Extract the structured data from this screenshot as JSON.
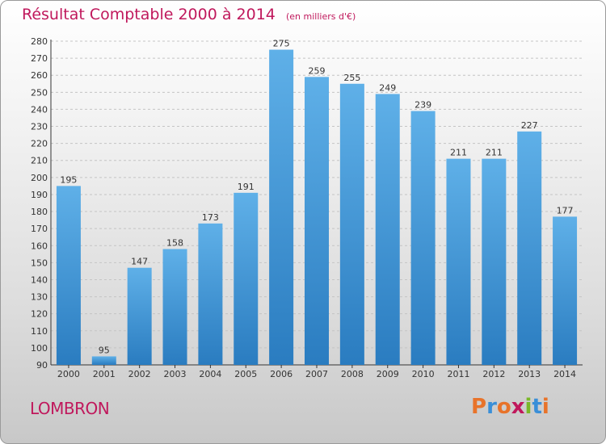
{
  "header": {
    "title": "Résultat Comptable 2000 à 2014",
    "unit": "(en milliers d'€)"
  },
  "footer": {
    "town": "LOMBRON",
    "brand": "Proxiti"
  },
  "colors": {
    "title": "#c0185c",
    "bar_light": "#5fb0e8",
    "bar_dark": "#2a7cc0",
    "brand_letters": [
      "#e8732a",
      "#3a8fd8",
      "#e8732a",
      "#c0185c",
      "#7ab828",
      "#3a8fd8",
      "#e8732a"
    ]
  },
  "chart_data": {
    "type": "bar",
    "title": "Résultat Comptable 2000 à 2014",
    "categories": [
      "2000",
      "2001",
      "2002",
      "2003",
      "2004",
      "2005",
      "2006",
      "2007",
      "2008",
      "2009",
      "2010",
      "2011",
      "2012",
      "2013",
      "2014"
    ],
    "values": [
      195,
      95,
      147,
      158,
      173,
      191,
      275,
      259,
      255,
      249,
      239,
      211,
      211,
      227,
      177
    ],
    "ylim": [
      90,
      280
    ],
    "yticks": [
      90,
      100,
      110,
      120,
      130,
      140,
      150,
      160,
      170,
      180,
      190,
      200,
      210,
      220,
      230,
      240,
      250,
      260,
      270,
      280
    ],
    "grid": true,
    "xlabel": "",
    "ylabel": ""
  }
}
